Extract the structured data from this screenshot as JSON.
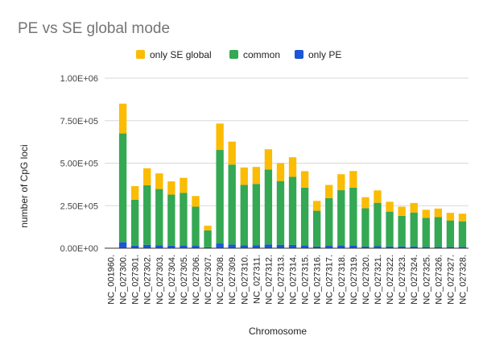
{
  "chart_data": {
    "type": "bar",
    "stacked": true,
    "title": "PE vs SE global mode",
    "xlabel": "Chromosome",
    "ylabel": "number of CpG loci",
    "ylim": [
      0,
      1000000
    ],
    "yticks": [
      "0.00E+00",
      "2.50E+05",
      "5.00E+05",
      "7.50E+05",
      "1.00E+06"
    ],
    "ytick_values": [
      0,
      250000,
      500000,
      750000,
      1000000
    ],
    "legend_position": "top",
    "grid": true,
    "categories": [
      "NC_001960.",
      "NC_027300.",
      "NC_027301.",
      "NC_027302.",
      "NC_027303.",
      "NC_027304.",
      "NC_027305.",
      "NC_027306.",
      "NC_027307.",
      "NC_027308.",
      "NC_027309.",
      "NC_027310.",
      "NC_027311.",
      "NC_027312.",
      "NC_027313.",
      "NC_027314.",
      "NC_027315.",
      "NC_027316.",
      "NC_027317.",
      "NC_027318.",
      "NC_027319.",
      "NC_027320.",
      "NC_027321.",
      "NC_027322.",
      "NC_027323.",
      "NC_027324.",
      "NC_027325.",
      "NC_027326.",
      "NC_027327.",
      "NC_027328."
    ],
    "series": [
      {
        "name": "only PE",
        "color": "#1a56d6",
        "values": [
          0,
          35000,
          15000,
          20000,
          18000,
          15000,
          16000,
          14000,
          5000,
          28000,
          22000,
          18000,
          18000,
          22000,
          20000,
          20000,
          16000,
          10000,
          14000,
          16000,
          16000,
          10000,
          12000,
          10000,
          10000,
          10000,
          8000,
          8000,
          8000,
          8000
        ]
      },
      {
        "name": "common",
        "color": "#34a853",
        "values": [
          0,
          640000,
          270000,
          350000,
          330000,
          300000,
          310000,
          230000,
          100000,
          550000,
          470000,
          355000,
          360000,
          440000,
          375000,
          400000,
          340000,
          210000,
          280000,
          325000,
          340000,
          225000,
          255000,
          205000,
          180000,
          200000,
          170000,
          175000,
          155000,
          150000
        ]
      },
      {
        "name": "only SE global",
        "color": "#fbbc04",
        "values": [
          0,
          175000,
          80000,
          100000,
          92000,
          78000,
          88000,
          63000,
          27000,
          155000,
          135000,
          102000,
          100000,
          120000,
          105000,
          115000,
          97000,
          58000,
          78000,
          94000,
          98000,
          65000,
          73000,
          58000,
          54000,
          56000,
          48000,
          50000,
          45000,
          45000
        ]
      }
    ]
  }
}
